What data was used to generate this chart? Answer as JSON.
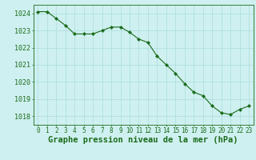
{
  "x": [
    0,
    1,
    2,
    3,
    4,
    5,
    6,
    7,
    8,
    9,
    10,
    11,
    12,
    13,
    14,
    15,
    16,
    17,
    18,
    19,
    20,
    21,
    22,
    23
  ],
  "y": [
    1024.1,
    1024.1,
    1023.7,
    1023.3,
    1022.8,
    1022.8,
    1022.8,
    1023.0,
    1023.2,
    1023.2,
    1022.9,
    1022.5,
    1022.3,
    1021.5,
    1021.0,
    1020.5,
    1019.9,
    1019.4,
    1019.2,
    1018.6,
    1018.2,
    1018.1,
    1018.4,
    1018.6
  ],
  "line_color": "#1a6b1a",
  "marker": "D",
  "marker_size": 2.2,
  "bg_color": "#cff0f0",
  "grid_color": "#aadddd",
  "axis_color": "#1a6b1a",
  "xlabel": "Graphe pression niveau de la mer (hPa)",
  "xlim": [
    -0.5,
    23.5
  ],
  "ylim": [
    1017.5,
    1024.5
  ],
  "yticks": [
    1018,
    1019,
    1020,
    1021,
    1022,
    1023,
    1024
  ],
  "xticks": [
    0,
    1,
    2,
    3,
    4,
    5,
    6,
    7,
    8,
    9,
    10,
    11,
    12,
    13,
    14,
    15,
    16,
    17,
    18,
    19,
    20,
    21,
    22,
    23
  ],
  "tick_fontsize": 5.5,
  "xlabel_fontsize": 7.5,
  "ytick_fontsize": 6.0
}
